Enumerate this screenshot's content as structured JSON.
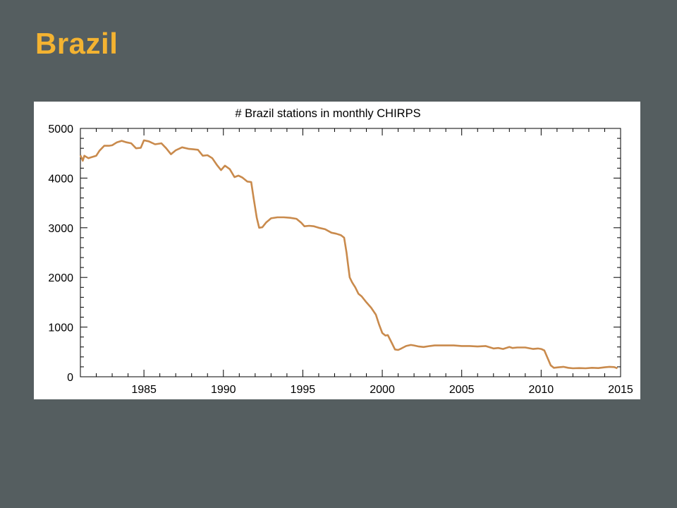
{
  "slide": {
    "title": "Brazil"
  },
  "colors": {
    "background": "#555e60",
    "title": "#f4b331",
    "line": "#c98a4c",
    "panel": "#ffffff"
  },
  "chart_data": {
    "type": "line",
    "title": "# Brazil stations in monthly CHIRPS",
    "xlabel": "",
    "ylabel": "",
    "xlim": [
      1981,
      2015
    ],
    "ylim": [
      0,
      5000
    ],
    "x_ticks": [
      1985,
      1990,
      1995,
      2000,
      2005,
      2010,
      2015
    ],
    "y_ticks": [
      0,
      1000,
      2000,
      3000,
      4000,
      5000
    ],
    "grid": false,
    "series": [
      {
        "x": [
          1981.0,
          1981.15,
          1981.25,
          1981.5,
          1982.0,
          1982.2,
          1982.5,
          1982.8,
          1983.0,
          1983.3,
          1983.6,
          1983.9,
          1984.2,
          1984.5,
          1984.8,
          1985.0,
          1985.3,
          1985.7,
          1986.1,
          1986.4,
          1986.7,
          1987.0,
          1987.4,
          1987.8,
          1988.1,
          1988.4,
          1988.7,
          1989.0,
          1989.3,
          1989.6,
          1989.85,
          1990.1,
          1990.4,
          1990.7,
          1990.95,
          1991.2,
          1991.5,
          1991.75,
          1991.9,
          1992.1,
          1992.25,
          1992.45,
          1992.7,
          1993.0,
          1993.4,
          1993.8,
          1994.2,
          1994.6,
          1994.9,
          1995.1,
          1995.4,
          1995.7,
          1996.0,
          1996.4,
          1996.8,
          1997.1,
          1997.4,
          1997.6,
          1997.75,
          1997.85,
          1997.95,
          1998.1,
          1998.3,
          1998.5,
          1998.7,
          1999.0,
          1999.3,
          1999.6,
          1999.8,
          2000.0,
          2000.2,
          2000.35,
          2000.6,
          2000.8,
          2001.0,
          2001.2,
          2001.5,
          2001.8,
          2002.0,
          2002.3,
          2002.6,
          2003.0,
          2003.3,
          2003.7,
          2004.0,
          2004.5,
          2005.0,
          2005.5,
          2006.0,
          2006.5,
          2007.0,
          2007.3,
          2007.6,
          2008.0,
          2008.2,
          2008.5,
          2009.0,
          2009.5,
          2009.8,
          2010.0,
          2010.2,
          2010.4,
          2010.6,
          2010.8,
          2011.1,
          2011.4,
          2011.7,
          2012.0,
          2012.4,
          2012.8,
          2013.2,
          2013.6,
          2014.0,
          2014.3,
          2014.6,
          2014.8
        ],
        "values": [
          4460,
          4350,
          4450,
          4400,
          4450,
          4550,
          4650,
          4650,
          4660,
          4720,
          4750,
          4720,
          4700,
          4600,
          4610,
          4760,
          4740,
          4680,
          4700,
          4600,
          4480,
          4560,
          4620,
          4590,
          4580,
          4570,
          4450,
          4460,
          4400,
          4260,
          4160,
          4250,
          4180,
          4020,
          4050,
          4010,
          3930,
          3920,
          3600,
          3200,
          3000,
          3010,
          3110,
          3190,
          3210,
          3210,
          3200,
          3180,
          3100,
          3030,
          3040,
          3030,
          3000,
          2970,
          2900,
          2880,
          2850,
          2800,
          2500,
          2250,
          2000,
          1900,
          1800,
          1670,
          1620,
          1500,
          1390,
          1250,
          1050,
          880,
          830,
          840,
          680,
          550,
          540,
          570,
          620,
          640,
          630,
          610,
          600,
          620,
          630,
          630,
          630,
          630,
          620,
          620,
          610,
          620,
          570,
          580,
          560,
          600,
          580,
          590,
          590,
          560,
          570,
          560,
          530,
          380,
          230,
          180,
          190,
          200,
          180,
          170,
          175,
          170,
          180,
          175,
          190,
          200,
          195,
          170
        ]
      }
    ]
  }
}
